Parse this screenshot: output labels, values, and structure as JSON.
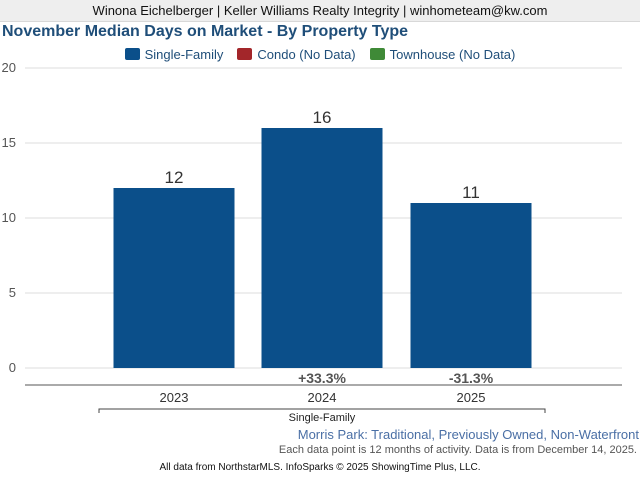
{
  "header": {
    "agent_line": "Winona Eichelberger | Keller Williams Realty Integrity | winhometeam@kw.com"
  },
  "legend": [
    {
      "label": "Single-Family",
      "color": "#0b4f8a"
    },
    {
      "label": "Condo (No Data)",
      "color": "#a3262a"
    },
    {
      "label": "Townhouse (No Data)",
      "color": "#3f8a37"
    }
  ],
  "chart_data": {
    "type": "bar",
    "title": "November Median Days on Market - By Property Type",
    "categories": [
      "2023",
      "2024",
      "2025"
    ],
    "series": [
      {
        "name": "Single-Family",
        "values": [
          12,
          16,
          11
        ],
        "color": "#0b4f8a"
      }
    ],
    "value_labels": [
      "12",
      "16",
      "11"
    ],
    "change_labels": [
      "",
      "+33.3%",
      "-31.3%"
    ],
    "group_label": "Single-Family",
    "ylim": [
      0,
      20
    ],
    "yticks": [
      0,
      5,
      10,
      15,
      20
    ],
    "grid": true,
    "legend_position": "top-center"
  },
  "footer": {
    "subtitle": "Morris Park: Traditional, Previously Owned, Non-Waterfront",
    "note": "Each data point is 12 months of activity. Data is from December 14, 2025.",
    "source": "All data from NorthstarMLS. InfoSparks © 2025 ShowingTime Plus, LLC."
  }
}
